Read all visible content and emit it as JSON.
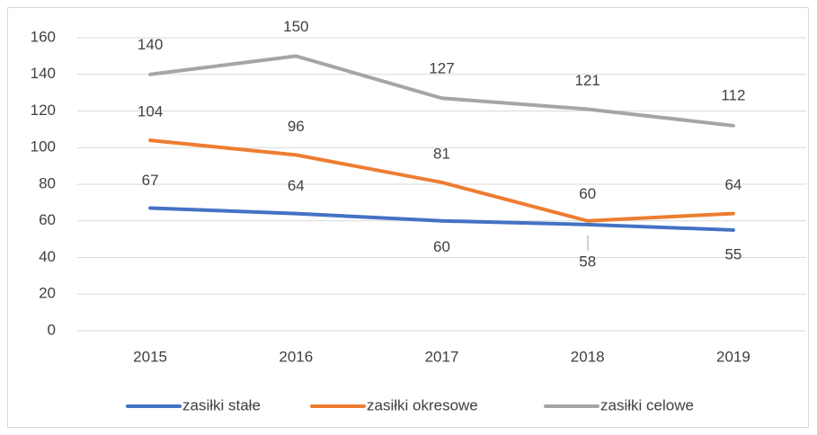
{
  "chart_data": {
    "type": "line",
    "categories": [
      "2015",
      "2016",
      "2017",
      "2018",
      "2019"
    ],
    "series": [
      {
        "name": "zasiłki stałe",
        "color": "#4472c4",
        "values": [
          67,
          64,
          60,
          58,
          55
        ]
      },
      {
        "name": "zasiłki okresowe",
        "color": "#ed7d31",
        "values": [
          104,
          96,
          81,
          60,
          64
        ]
      },
      {
        "name": "zasiłki celowe",
        "color": "#a5a5a5",
        "values": [
          140,
          150,
          127,
          121,
          112
        ]
      }
    ],
    "ylim": [
      0,
      160
    ],
    "yticks": [
      0,
      20,
      40,
      60,
      80,
      100,
      120,
      140,
      160
    ],
    "grid": true,
    "legend": "bottom"
  }
}
